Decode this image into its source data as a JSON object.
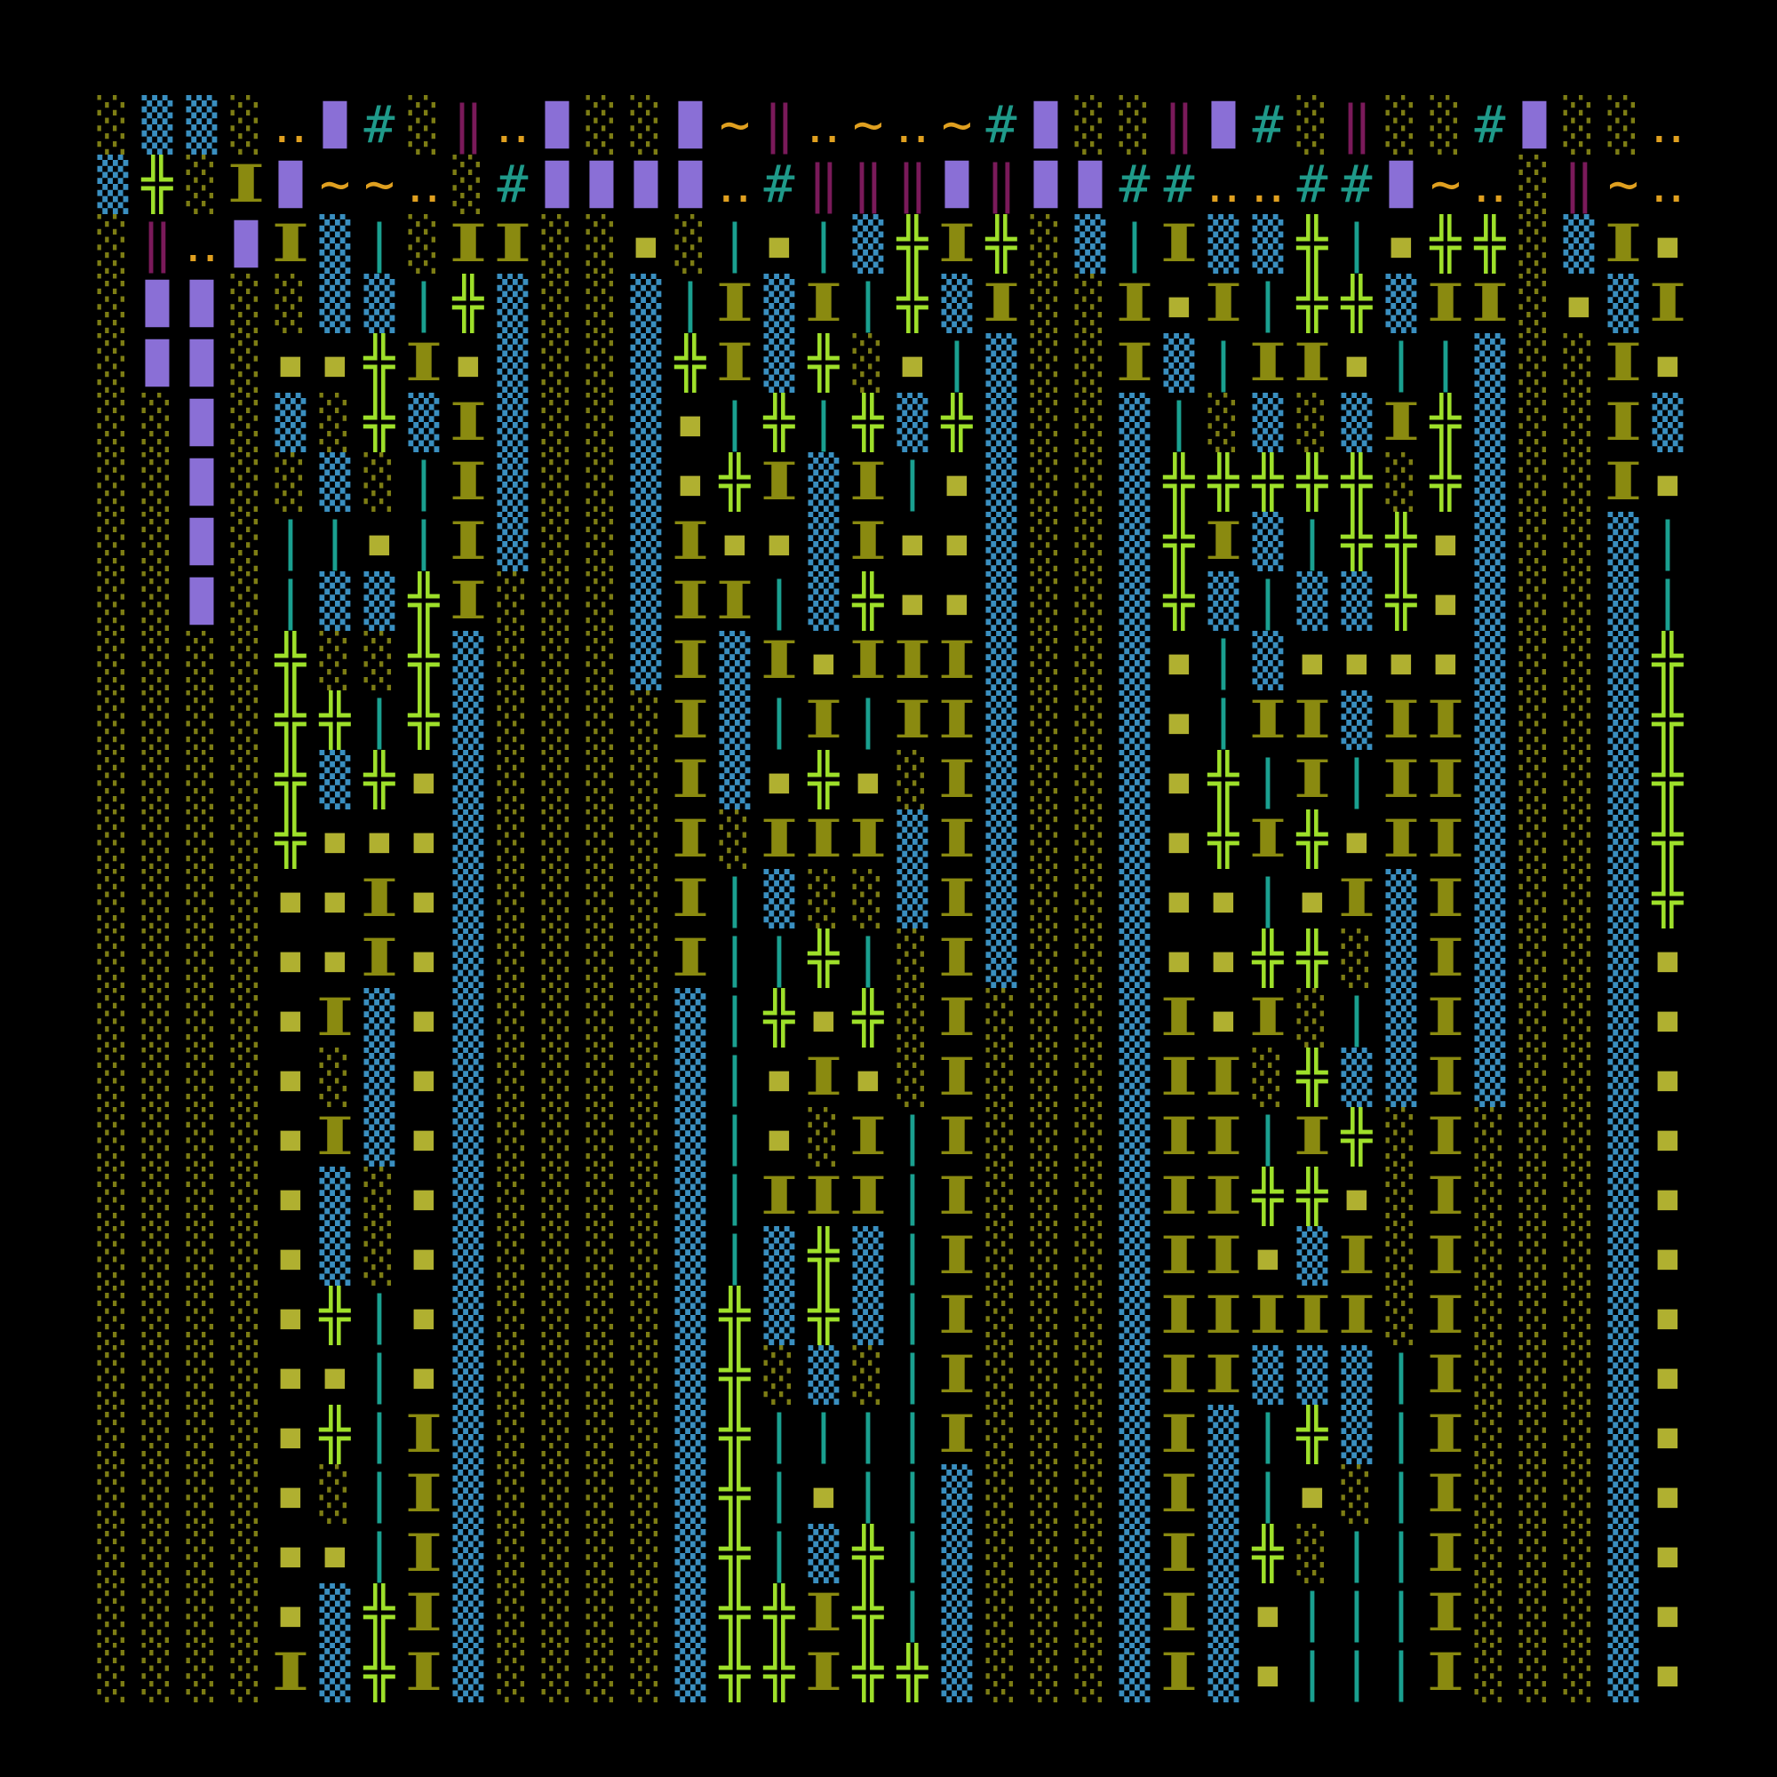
{
  "map": {
    "rows": [
      [
        "░",
        "▒",
        "▒",
        "░",
        "‥",
        "█",
        "#",
        "░",
        "‖",
        "‥",
        "█",
        "░",
        "░",
        "█",
        "~",
        "‖",
        "‥",
        "~",
        "‥",
        "~",
        "#",
        "█",
        "░",
        "░",
        "‖",
        "█",
        "#",
        "░",
        "‖",
        "░",
        "░",
        "#",
        "█",
        "░",
        "░",
        "‥"
      ],
      [
        "▒",
        "╬",
        "░",
        "I",
        "█",
        "~",
        "~",
        "‥",
        "░",
        "#",
        "█",
        "█",
        "█",
        "█",
        "‥",
        "#",
        "‖",
        "‖",
        "‖",
        "█",
        "‖",
        "█",
        "█",
        "#",
        "#",
        "‥",
        "‥",
        "#",
        "#",
        "█",
        "~",
        "‥",
        "░",
        "‖",
        "~",
        "‥"
      ],
      [
        "░",
        "‖",
        "‥",
        "█",
        "I",
        "▒",
        "|",
        "░",
        "I",
        "I",
        "░",
        "░",
        "▪",
        "░",
        "|",
        "▪",
        "|",
        "▒",
        "╬",
        "I",
        "╬",
        "░",
        "▒",
        "|",
        "I",
        "▒",
        "▒",
        "╬",
        "|",
        "▪",
        "╬",
        "╬",
        "░",
        "▒",
        "I",
        "▪"
      ],
      [
        "░",
        "█",
        "█",
        "░",
        "░",
        "▒",
        "▒",
        "|",
        "╬",
        "▒",
        "░",
        "░",
        "▒",
        "|",
        "I",
        "▒",
        "I",
        "|",
        "╬",
        "▒",
        "I",
        "░",
        "░",
        "I",
        "▪",
        "I",
        "|",
        "╬",
        "╬",
        "▒",
        "I",
        "I",
        "░",
        "▪",
        "▒",
        "I"
      ],
      [
        "░",
        "█",
        "█",
        "░",
        "▪",
        "▪",
        "╬",
        "I",
        "▪",
        "▒",
        "░",
        "░",
        "▒",
        "╬",
        "I",
        "▒",
        "╬",
        "░",
        "▪",
        "|",
        "▒",
        "░",
        "░",
        "I",
        "▒",
        "|",
        "I",
        "I",
        "▪",
        "|",
        "|",
        "▒",
        "░",
        "░",
        "I",
        "▪"
      ],
      [
        "░",
        "░",
        "█",
        "░",
        "▒",
        "░",
        "╬",
        "▒",
        "I",
        "▒",
        "░",
        "░",
        "▒",
        "▪",
        "|",
        "╬",
        "|",
        "╬",
        "▒",
        "╬",
        "▒",
        "░",
        "░",
        "▒",
        "|",
        "░",
        "▒",
        "░",
        "▒",
        "I",
        "╬",
        "▒",
        "░",
        "░",
        "I",
        "▒"
      ],
      [
        "░",
        "░",
        "█",
        "░",
        "░",
        "▒",
        "░",
        "|",
        "I",
        "▒",
        "░",
        "░",
        "▒",
        "▪",
        "╬",
        "I",
        "▒",
        "I",
        "|",
        "▪",
        "▒",
        "░",
        "░",
        "▒",
        "╬",
        "╬",
        "╬",
        "╬",
        "╬",
        "░",
        "╬",
        "▒",
        "░",
        "░",
        "I",
        "▪"
      ],
      [
        "░",
        "░",
        "█",
        "░",
        "|",
        "|",
        "▪",
        "|",
        "I",
        "▒",
        "░",
        "░",
        "▒",
        "I",
        "▪",
        "▪",
        "▒",
        "I",
        "▪",
        "▪",
        "▒",
        "░",
        "░",
        "▒",
        "╬",
        "I",
        "▒",
        "|",
        "╬",
        "╬",
        "▪",
        "▒",
        "░",
        "░",
        "▒",
        "|"
      ],
      [
        "░",
        "░",
        "█",
        "░",
        "|",
        "▒",
        "▒",
        "╬",
        "I",
        "░",
        "░",
        "░",
        "▒",
        "I",
        "I",
        "|",
        "▒",
        "╬",
        "▪",
        "▪",
        "▒",
        "░",
        "░",
        "▒",
        "╬",
        "▒",
        "|",
        "▒",
        "▒",
        "╬",
        "▪",
        "▒",
        "░",
        "░",
        "▒",
        "|"
      ],
      [
        "░",
        "░",
        "░",
        "░",
        "╬",
        "░",
        "░",
        "╬",
        "▒",
        "░",
        "░",
        "░",
        "▒",
        "I",
        "▒",
        "I",
        "▪",
        "I",
        "I",
        "I",
        "▒",
        "░",
        "░",
        "▒",
        "▪",
        "|",
        "▒",
        "▪",
        "▪",
        "▪",
        "▪",
        "▒",
        "░",
        "░",
        "▒",
        "╬"
      ],
      [
        "░",
        "░",
        "░",
        "░",
        "╬",
        "╬",
        "|",
        "╬",
        "▒",
        "░",
        "░",
        "░",
        "░",
        "I",
        "▒",
        "|",
        "I",
        "|",
        "I",
        "I",
        "▒",
        "░",
        "░",
        "▒",
        "▪",
        "|",
        "I",
        "I",
        "▒",
        "I",
        "I",
        "▒",
        "░",
        "░",
        "▒",
        "╬"
      ],
      [
        "░",
        "░",
        "░",
        "░",
        "╬",
        "▒",
        "╬",
        "▪",
        "▒",
        "░",
        "░",
        "░",
        "░",
        "I",
        "▒",
        "▪",
        "╬",
        "▪",
        "░",
        "I",
        "▒",
        "░",
        "░",
        "▒",
        "▪",
        "╬",
        "|",
        "I",
        "|",
        "I",
        "I",
        "▒",
        "░",
        "░",
        "▒",
        "╬"
      ],
      [
        "░",
        "░",
        "░",
        "░",
        "╬",
        "▪",
        "▪",
        "▪",
        "▒",
        "░",
        "░",
        "░",
        "░",
        "I",
        "░",
        "I",
        "I",
        "I",
        "▒",
        "I",
        "▒",
        "░",
        "░",
        "▒",
        "▪",
        "╬",
        "I",
        "╬",
        "▪",
        "I",
        "I",
        "▒",
        "░",
        "░",
        "▒",
        "╬"
      ],
      [
        "░",
        "░",
        "░",
        "░",
        "▪",
        "▪",
        "I",
        "▪",
        "▒",
        "░",
        "░",
        "░",
        "░",
        "I",
        "|",
        "▒",
        "░",
        "░",
        "▒",
        "I",
        "▒",
        "░",
        "░",
        "▒",
        "▪",
        "▪",
        "|",
        "▪",
        "I",
        "▒",
        "I",
        "▒",
        "░",
        "░",
        "▒",
        "╬"
      ],
      [
        "░",
        "░",
        "░",
        "░",
        "▪",
        "▪",
        "I",
        "▪",
        "▒",
        "░",
        "░",
        "░",
        "░",
        "I",
        "|",
        "|",
        "╬",
        "|",
        "░",
        "I",
        "▒",
        "░",
        "░",
        "▒",
        "▪",
        "▪",
        "╬",
        "╬",
        "░",
        "▒",
        "I",
        "▒",
        "░",
        "░",
        "▒",
        "▪"
      ],
      [
        "░",
        "░",
        "░",
        "░",
        "▪",
        "I",
        "▒",
        "▪",
        "▒",
        "░",
        "░",
        "░",
        "░",
        "▒",
        "|",
        "╬",
        "▪",
        "╬",
        "░",
        "I",
        "░",
        "░",
        "░",
        "▒",
        "I",
        "▪",
        "I",
        "░",
        "|",
        "▒",
        "I",
        "▒",
        "░",
        "░",
        "▒",
        "▪"
      ],
      [
        "░",
        "░",
        "░",
        "░",
        "▪",
        "░",
        "▒",
        "▪",
        "▒",
        "░",
        "░",
        "░",
        "░",
        "▒",
        "|",
        "▪",
        "I",
        "▪",
        "░",
        "I",
        "░",
        "░",
        "░",
        "▒",
        "I",
        "I",
        "░",
        "╬",
        "▒",
        "▒",
        "I",
        "▒",
        "░",
        "░",
        "▒",
        "▪"
      ],
      [
        "░",
        "░",
        "░",
        "░",
        "▪",
        "I",
        "▒",
        "▪",
        "▒",
        "░",
        "░",
        "░",
        "░",
        "▒",
        "|",
        "▪",
        "░",
        "I",
        "|",
        "I",
        "░",
        "░",
        "░",
        "▒",
        "I",
        "I",
        "|",
        "I",
        "╬",
        "░",
        "I",
        "░",
        "░",
        "░",
        "▒",
        "▪"
      ],
      [
        "░",
        "░",
        "░",
        "░",
        "▪",
        "▒",
        "░",
        "▪",
        "▒",
        "░",
        "░",
        "░",
        "░",
        "▒",
        "|",
        "I",
        "I",
        "I",
        "|",
        "I",
        "░",
        "░",
        "░",
        "▒",
        "I",
        "I",
        "╬",
        "╬",
        "▪",
        "░",
        "I",
        "░",
        "░",
        "░",
        "▒",
        "▪"
      ],
      [
        "░",
        "░",
        "░",
        "░",
        "▪",
        "▒",
        "░",
        "▪",
        "▒",
        "░",
        "░",
        "░",
        "░",
        "▒",
        "|",
        "▒",
        "╬",
        "▒",
        "|",
        "I",
        "░",
        "░",
        "░",
        "▒",
        "I",
        "I",
        "▪",
        "▒",
        "I",
        "░",
        "I",
        "░",
        "░",
        "░",
        "▒",
        "▪"
      ],
      [
        "░",
        "░",
        "░",
        "░",
        "▪",
        "╬",
        "|",
        "▪",
        "▒",
        "░",
        "░",
        "░",
        "░",
        "▒",
        "╬",
        "▒",
        "╬",
        "▒",
        "|",
        "I",
        "░",
        "░",
        "░",
        "▒",
        "I",
        "I",
        "I",
        "I",
        "I",
        "░",
        "I",
        "░",
        "░",
        "░",
        "▒",
        "▪"
      ],
      [
        "░",
        "░",
        "░",
        "░",
        "▪",
        "▪",
        "|",
        "▪",
        "▒",
        "░",
        "░",
        "░",
        "░",
        "▒",
        "╬",
        "░",
        "▒",
        "░",
        "|",
        "I",
        "░",
        "░",
        "░",
        "▒",
        "I",
        "I",
        "▒",
        "▒",
        "▒",
        "|",
        "I",
        "░",
        "░",
        "░",
        "▒",
        "▪"
      ],
      [
        "░",
        "░",
        "░",
        "░",
        "▪",
        "╬",
        "|",
        "I",
        "▒",
        "░",
        "░",
        "░",
        "░",
        "▒",
        "╬",
        "|",
        "|",
        "|",
        "|",
        "I",
        "░",
        "░",
        "░",
        "▒",
        "I",
        "▒",
        "|",
        "╬",
        "▒",
        "|",
        "I",
        "░",
        "░",
        "░",
        "▒",
        "▪"
      ],
      [
        "░",
        "░",
        "░",
        "░",
        "▪",
        "░",
        "|",
        "I",
        "▒",
        "░",
        "░",
        "░",
        "░",
        "▒",
        "╬",
        "|",
        "▪",
        "|",
        "|",
        "▒",
        "░",
        "░",
        "░",
        "▒",
        "I",
        "▒",
        "|",
        "▪",
        "░",
        "|",
        "I",
        "░",
        "░",
        "░",
        "▒",
        "▪"
      ],
      [
        "░",
        "░",
        "░",
        "░",
        "▪",
        "▪",
        "|",
        "I",
        "▒",
        "░",
        "░",
        "░",
        "░",
        "▒",
        "╬",
        "|",
        "▒",
        "╬",
        "|",
        "▒",
        "░",
        "░",
        "░",
        "▒",
        "I",
        "▒",
        "╬",
        "░",
        "|",
        "|",
        "I",
        "░",
        "░",
        "░",
        "▒",
        "▪"
      ],
      [
        "░",
        "░",
        "░",
        "░",
        "▪",
        "▒",
        "╬",
        "I",
        "▒",
        "░",
        "░",
        "░",
        "░",
        "▒",
        "╬",
        "╬",
        "I",
        "╬",
        "|",
        "▒",
        "░",
        "░",
        "░",
        "▒",
        "I",
        "▒",
        "▪",
        "|",
        "|",
        "|",
        "I",
        "░",
        "░",
        "░",
        "▒",
        "▪"
      ],
      [
        "░",
        "░",
        "░",
        "░",
        "I",
        "▒",
        "╬",
        "I",
        "▒",
        "░",
        "░",
        "░",
        "░",
        "▒",
        "╬",
        "╬",
        "I",
        "╬",
        "╬",
        "▒",
        "░",
        "░",
        "░",
        "▒",
        "I",
        "▒",
        "▪",
        "|",
        "|",
        "|",
        "I",
        "░",
        "░",
        "░",
        "▒",
        "▪"
      ]
    ]
  }
}
